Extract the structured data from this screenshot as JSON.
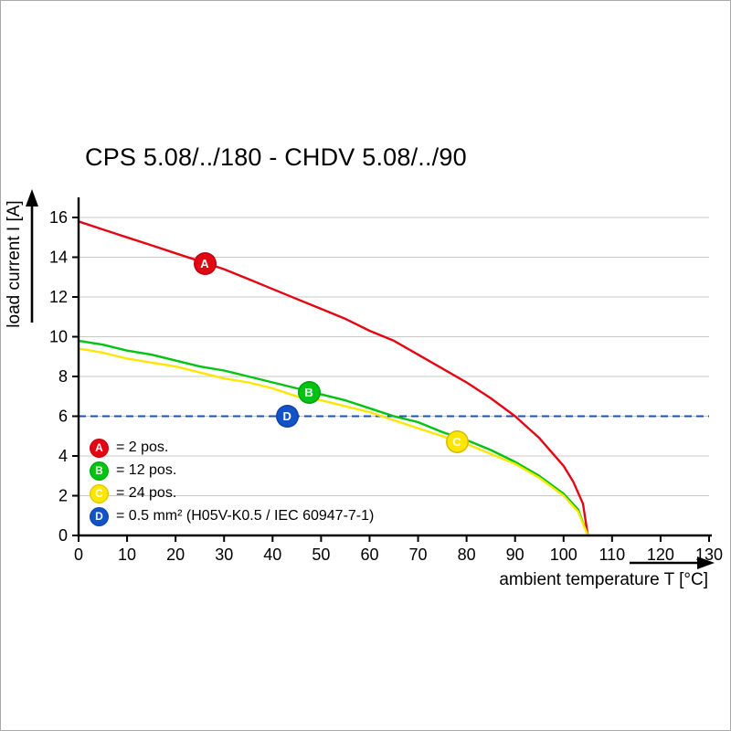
{
  "page": {
    "title": "CPS 5.08/../180 - CHDV 5.08/../90"
  },
  "chart_data": {
    "type": "line",
    "title": "CPS 5.08/../180 - CHDV 5.08/../90",
    "xlabel": "ambient temperature T [°C]",
    "ylabel": "load current I [A]",
    "xlim": [
      0,
      130
    ],
    "ylim": [
      0,
      16
    ],
    "xticks": [
      0,
      10,
      20,
      30,
      40,
      50,
      60,
      70,
      80,
      90,
      100,
      110,
      120,
      130
    ],
    "yticks": [
      0,
      2,
      4,
      6,
      8,
      10,
      12,
      14,
      16
    ],
    "grid": "horizontal",
    "gridline_color": "#c8c8c8",
    "axis_color": "#000000",
    "legend_position": "inside-bottom-left",
    "series": [
      {
        "name": "A",
        "label": "= 2 pos.",
        "color": "#e30613",
        "marker_at": {
          "x": 26,
          "y": 13.7
        },
        "points": [
          [
            0,
            15.8
          ],
          [
            5,
            15.4
          ],
          [
            10,
            15.0
          ],
          [
            15,
            14.6
          ],
          [
            20,
            14.2
          ],
          [
            25,
            13.8
          ],
          [
            30,
            13.4
          ],
          [
            35,
            12.9
          ],
          [
            40,
            12.4
          ],
          [
            45,
            11.9
          ],
          [
            50,
            11.4
          ],
          [
            55,
            10.9
          ],
          [
            60,
            10.3
          ],
          [
            65,
            9.8
          ],
          [
            70,
            9.1
          ],
          [
            75,
            8.4
          ],
          [
            80,
            7.7
          ],
          [
            85,
            6.9
          ],
          [
            90,
            6.0
          ],
          [
            95,
            4.9
          ],
          [
            100,
            3.5
          ],
          [
            102,
            2.7
          ],
          [
            104,
            1.6
          ],
          [
            105,
            0
          ]
        ]
      },
      {
        "name": "B",
        "label": "= 12 pos.",
        "color": "#00c313",
        "marker_at": {
          "x": 47.5,
          "y": 7.2
        },
        "points": [
          [
            0,
            9.8
          ],
          [
            5,
            9.6
          ],
          [
            10,
            9.3
          ],
          [
            15,
            9.1
          ],
          [
            20,
            8.8
          ],
          [
            25,
            8.5
          ],
          [
            30,
            8.3
          ],
          [
            35,
            8.0
          ],
          [
            40,
            7.7
          ],
          [
            45,
            7.4
          ],
          [
            50,
            7.1
          ],
          [
            55,
            6.8
          ],
          [
            60,
            6.4
          ],
          [
            65,
            6.0
          ],
          [
            70,
            5.7
          ],
          [
            75,
            5.2
          ],
          [
            80,
            4.8
          ],
          [
            85,
            4.3
          ],
          [
            90,
            3.7
          ],
          [
            95,
            3.0
          ],
          [
            100,
            2.1
          ],
          [
            103,
            1.3
          ],
          [
            105,
            0
          ]
        ]
      },
      {
        "name": "C",
        "label": "= 24 pos.",
        "color": "#ffe600",
        "marker_at": {
          "x": 78,
          "y": 4.7
        },
        "points": [
          [
            0,
            9.4
          ],
          [
            5,
            9.2
          ],
          [
            10,
            8.9
          ],
          [
            15,
            8.7
          ],
          [
            20,
            8.5
          ],
          [
            25,
            8.2
          ],
          [
            30,
            7.9
          ],
          [
            35,
            7.7
          ],
          [
            40,
            7.4
          ],
          [
            45,
            7.0
          ],
          [
            50,
            6.8
          ],
          [
            55,
            6.5
          ],
          [
            60,
            6.2
          ],
          [
            65,
            5.8
          ],
          [
            70,
            5.4
          ],
          [
            75,
            5.0
          ],
          [
            80,
            4.6
          ],
          [
            85,
            4.1
          ],
          [
            90,
            3.6
          ],
          [
            95,
            2.9
          ],
          [
            100,
            2.0
          ],
          [
            103,
            1.2
          ],
          [
            105,
            0
          ]
        ]
      },
      {
        "name": "D",
        "label": "= 0.5 mm² (H05V-K0.5 / IEC 60947-7-1)",
        "color": "#1353c8",
        "type": "hline-dashed",
        "y": 6,
        "marker_at": {
          "x": 43,
          "y": 6
        }
      }
    ]
  }
}
